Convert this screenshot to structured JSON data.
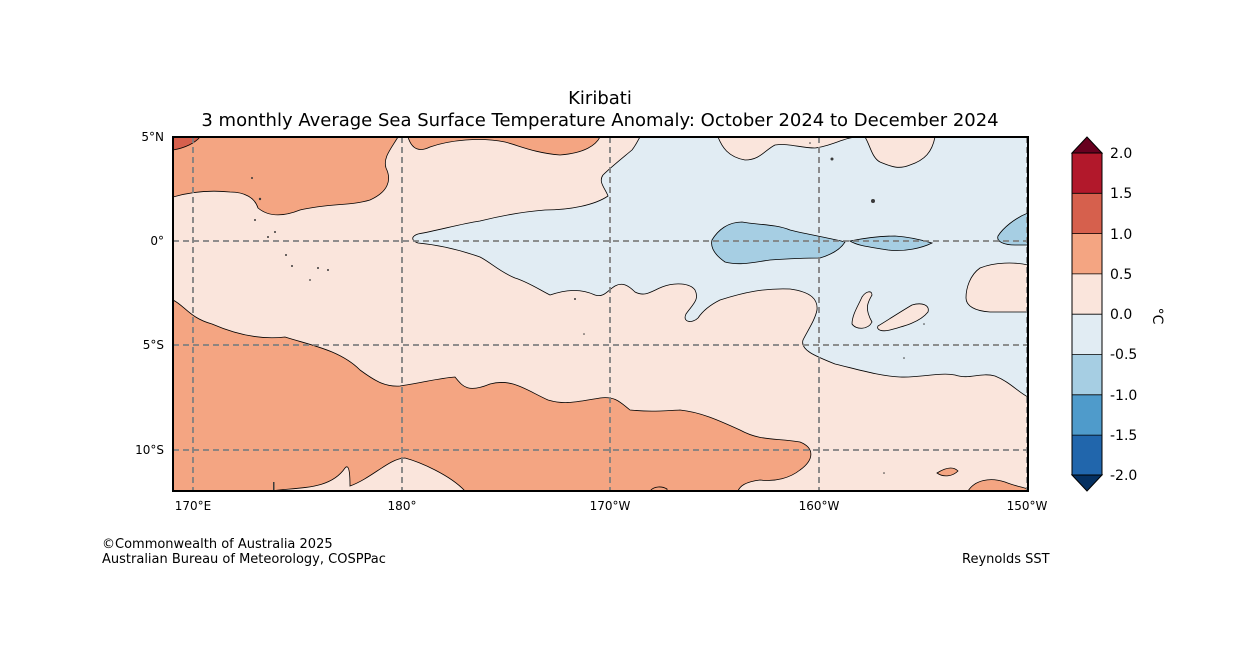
{
  "title": "Kiribati",
  "subtitle": "3 monthly Average Sea Surface Temperature Anomaly: October 2024 to December 2024",
  "axes": {
    "lat_labels": [
      "5°N",
      "0°",
      "5°S",
      "10°S"
    ],
    "lon_labels": [
      "170°E",
      "180°",
      "170°W",
      "160°W",
      "150°W"
    ]
  },
  "colorbar": {
    "unit": "°C",
    "ticks": [
      "2.0",
      "1.5",
      "1.0",
      "0.5",
      "0.0",
      "-0.5",
      "-1.0",
      "-1.5",
      "-2.0"
    ],
    "colors": {
      "over": "#67001f",
      "b15_20": "#b2182b",
      "b10_15": "#d6604d",
      "b05_10": "#f4a582",
      "b00_05": "#fae5dc",
      "bm05_00": "#e1ecf3",
      "bm10_m05": "#a6cee3",
      "bm15_m10": "#4f9bcb",
      "bm20_m15": "#2166ac",
      "under": "#053061"
    }
  },
  "credits": {
    "line1": "©Commonwealth of Australia 2025",
    "line2": "Australian Bureau of Meteorology, COSPPac",
    "source": "Reynolds SST"
  }
}
